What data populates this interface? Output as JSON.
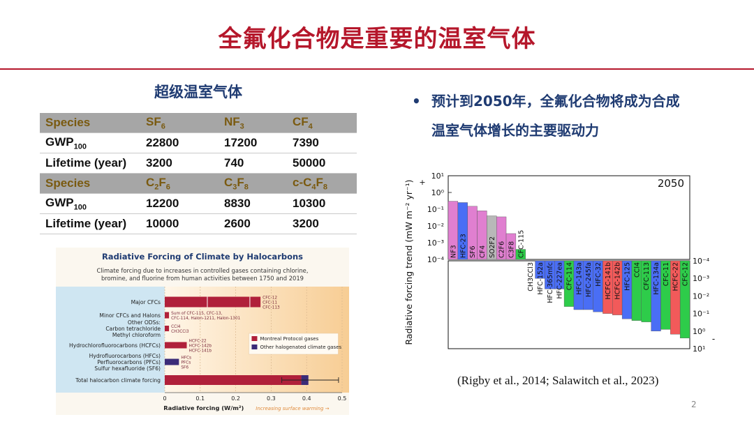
{
  "slide": {
    "title": "全氟化合物是重要的温室气体",
    "subtitle": "超级温室气体",
    "bullet": "预计到2050年，全氟化合物将成为合成温室气体增长的主要驱动力",
    "bullet_line1": "预计到2050年，全氟化合物将成为合成",
    "bullet_line2": "温室气体增长的主要驱动力",
    "citation": "(Rigby et al., 2014; Salawitch et al., 2023)",
    "page_number": "2"
  },
  "gwp_table": {
    "rows": [
      {
        "kind": "header",
        "cells": [
          "Species",
          "SF6",
          "NF3",
          "CF4"
        ]
      },
      {
        "kind": "row",
        "cells": [
          "GWP100",
          "22800",
          "17200",
          "7390"
        ]
      },
      {
        "kind": "row",
        "cells": [
          "Lifetime (year)",
          "3200",
          "740",
          "50000"
        ]
      },
      {
        "kind": "header",
        "cells": [
          "Species",
          "C2F6",
          "C3F8",
          "c-C4F8"
        ]
      },
      {
        "kind": "row",
        "cells": [
          "GWP100",
          "12200",
          "8830",
          "10300"
        ]
      },
      {
        "kind": "row",
        "cells": [
          "Lifetime (year)",
          "10000",
          "2600",
          "3200"
        ]
      }
    ]
  },
  "chart_data": [
    {
      "type": "bar",
      "orientation": "horizontal",
      "title": "Radiative Forcing of Climate by Halocarbons",
      "subtitle": "Climate forcing due to increases in controlled gases containing chlorine, bromine, and fluorine from human activities between 1750 and 2019",
      "xlabel": "Radiative forcing (W/m²)",
      "annotation": "Increasing surface warming →",
      "xlim": [
        0,
        0.5
      ],
      "xticks": [
        "0",
        "0.1",
        "0.2",
        "0.3",
        "0.4",
        "0.5"
      ],
      "legend": {
        "placement": "right",
        "entries": [
          "Montreal Protocol gases",
          "Other halogenated climate gases"
        ],
        "colors": [
          "#b0203a",
          "#3b2c78"
        ]
      },
      "categories": [
        "Major CFCs",
        "Minor CFCs and Halons",
        "Other ODSs: Carbon tetrachloride Methyl chloroform",
        "Hydrochlorofluorocarbons (HCFCs)",
        "Hydrofluorocarbons (HFCs) Perfluorocarbons (PFCs) Sulfur hexafluoride (SF6)",
        "Total halocarbon climate forcing"
      ],
      "category_lines": [
        [
          "Major CFCs"
        ],
        [
          "Minor CFCs and Halons"
        ],
        [
          "Other ODSs:",
          "Carbon tetrachloride",
          "Methyl chloroform"
        ],
        [
          "Hydrochlorofluorocarbons (HCFCs)"
        ],
        [
          "Hydrofluorocarbons (HFCs)",
          "Perfluorocarbons (PFCs)",
          "Sulfur hexafluoride (SF6)"
        ],
        [
          "Total halocarbon climate forcing"
        ]
      ],
      "series": [
        {
          "name": "Montreal Protocol gases",
          "values": [
            0.27,
            0.012,
            0.012,
            0.062,
            0,
            0.385
          ]
        },
        {
          "name": "Other halogenated climate gases",
          "values": [
            0,
            0,
            0,
            0,
            0.04,
            0.02
          ]
        }
      ],
      "bar_notes": [
        [
          "CFC-12",
          "CFC-11",
          "CFC-113"
        ],
        [
          "Sum of CFC-115, CFC-13,",
          "CFC-114, Halon-1211, Halon-1301"
        ],
        [
          "CCl4",
          "CH3CCl3"
        ],
        [
          "HCFC-22",
          "HCFC-142b",
          "HCFC-141b"
        ],
        [
          "HFCs",
          "PFCs",
          "SF6"
        ],
        []
      ],
      "total_error": [
        0.33,
        0.49
      ]
    },
    {
      "type": "bar",
      "title": "",
      "panel_label": "2050",
      "ylabel": "Radiative forcing trend (mW m⁻² yr⁻¹)",
      "yscale": "log",
      "sign_labels": [
        "+",
        "-"
      ],
      "positive_ylim": [
        0.0001,
        10
      ],
      "positive_yticks": [
        "10¹",
        "10⁰",
        "10⁻¹",
        "10⁻²",
        "10⁻³",
        "10⁻⁴"
      ],
      "negative_yticks": [
        "10⁻⁴",
        "10⁻³",
        "10⁻²",
        "10⁻¹",
        "10⁰",
        "10¹"
      ],
      "positive_bars": [
        {
          "label": "NF3",
          "value": 0.3,
          "color": "#e07fd0"
        },
        {
          "label": "HFC-23",
          "value": 0.25,
          "color": "#4a6ef5"
        },
        {
          "label": "SF6",
          "value": 0.15,
          "color": "#e07fd0"
        },
        {
          "label": "CF4",
          "value": 0.08,
          "color": "#e07fd0"
        },
        {
          "label": "SO2F2",
          "value": 0.04,
          "color": "#b8b8b8"
        },
        {
          "label": "C2F6",
          "value": 0.035,
          "color": "#e07fd0"
        },
        {
          "label": "C3F8",
          "value": 0.0035,
          "color": "#e07fd0"
        },
        {
          "label": "CFC-115",
          "value": 0.0004,
          "color": "#2ecc4a"
        }
      ],
      "negative_bars": [
        {
          "label": "CH3CCl3",
          "value": 0.0001,
          "color": "#4a6ef5"
        },
        {
          "label": "HFC-152a",
          "value": 0.001,
          "color": "#4a6ef5"
        },
        {
          "label": "HFC-365mfc",
          "value": 0.004,
          "color": "#4a6ef5"
        },
        {
          "label": "HFC-227ea",
          "value": 0.004,
          "color": "#4a6ef5"
        },
        {
          "label": "CFC-114",
          "value": 0.04,
          "color": "#2ecc4a"
        },
        {
          "label": "HFC-143a",
          "value": 0.06,
          "color": "#4a6ef5"
        },
        {
          "label": "HFC-245fa",
          "value": 0.06,
          "color": "#4a6ef5"
        },
        {
          "label": "HFC-32",
          "value": 0.08,
          "color": "#4a6ef5"
        },
        {
          "label": "HCFC-141b",
          "value": 0.1,
          "color": "#f25a5a"
        },
        {
          "label": "HCFC-142b",
          "value": 0.12,
          "color": "#f25a5a"
        },
        {
          "label": "HFC-125",
          "value": 0.2,
          "color": "#4a6ef5"
        },
        {
          "label": "CCl4",
          "value": 0.25,
          "color": "#2ecc4a"
        },
        {
          "label": "CFC-113",
          "value": 0.3,
          "color": "#2ecc4a"
        },
        {
          "label": "HFC-134a",
          "value": 1.0,
          "color": "#4a6ef5"
        },
        {
          "label": "CFC-11",
          "value": 0.8,
          "color": "#2ecc4a"
        },
        {
          "label": "HCFC-22",
          "value": 1.5,
          "color": "#f25a5a"
        },
        {
          "label": "CFC-12",
          "value": 2.5,
          "color": "#2ecc4a"
        }
      ]
    }
  ]
}
